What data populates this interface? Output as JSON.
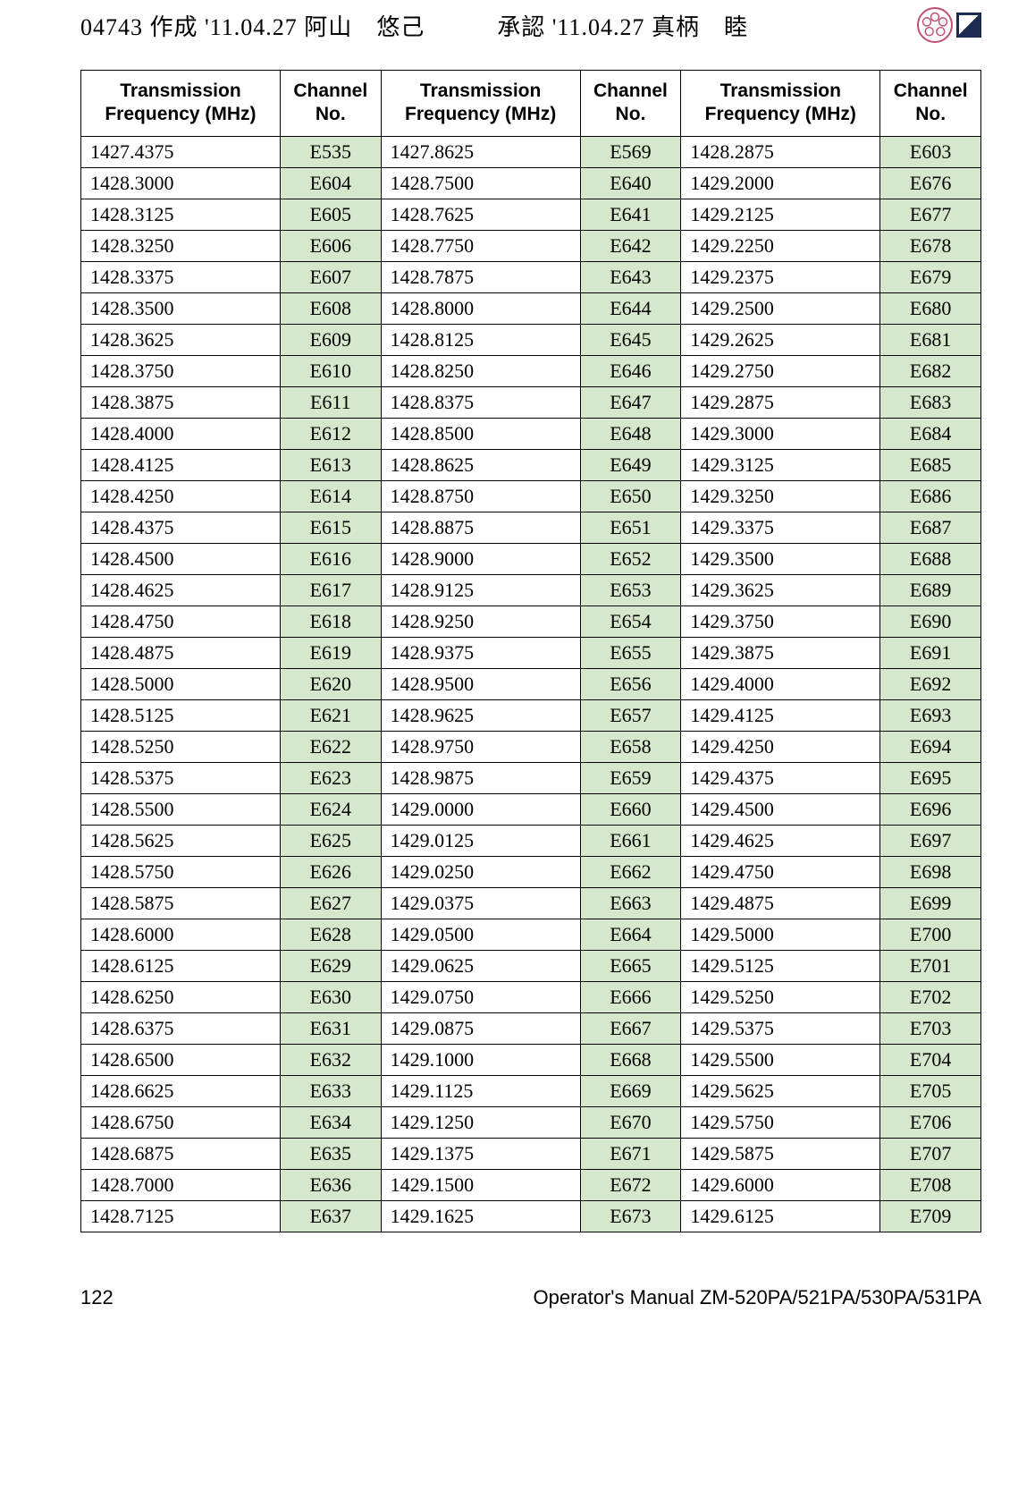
{
  "header": {
    "text": "04743 作成 '11.04.27 阿山　悠己　　　承認 '11.04.27 真柄　睦"
  },
  "table": {
    "columns": [
      "Transmission Frequency (MHz)",
      "Channel No.",
      "Transmission Frequency (MHz)",
      "Channel No.",
      "Transmission Frequency (MHz)",
      "Channel No."
    ],
    "header_bg": "#ffffff",
    "freq_bg": "#ffffff",
    "chan_bg": "#d6e8cc",
    "border_color": "#000000",
    "font_size": 22,
    "header_font_size": 21,
    "rows": [
      [
        "1427.4375",
        "E535",
        "1427.8625",
        "E569",
        "1428.2875",
        "E603"
      ],
      [
        "1428.3000",
        "E604",
        "1428.7500",
        "E640",
        "1429.2000",
        "E676"
      ],
      [
        "1428.3125",
        "E605",
        "1428.7625",
        "E641",
        "1429.2125",
        "E677"
      ],
      [
        "1428.3250",
        "E606",
        "1428.7750",
        "E642",
        "1429.2250",
        "E678"
      ],
      [
        "1428.3375",
        "E607",
        "1428.7875",
        "E643",
        "1429.2375",
        "E679"
      ],
      [
        "1428.3500",
        "E608",
        "1428.8000",
        "E644",
        "1429.2500",
        "E680"
      ],
      [
        "1428.3625",
        "E609",
        "1428.8125",
        "E645",
        "1429.2625",
        "E681"
      ],
      [
        "1428.3750",
        "E610",
        "1428.8250",
        "E646",
        "1429.2750",
        "E682"
      ],
      [
        "1428.3875",
        "E611",
        "1428.8375",
        "E647",
        "1429.2875",
        "E683"
      ],
      [
        "1428.4000",
        "E612",
        "1428.8500",
        "E648",
        "1429.3000",
        "E684"
      ],
      [
        "1428.4125",
        "E613",
        "1428.8625",
        "E649",
        "1429.3125",
        "E685"
      ],
      [
        "1428.4250",
        "E614",
        "1428.8750",
        "E650",
        "1429.3250",
        "E686"
      ],
      [
        "1428.4375",
        "E615",
        "1428.8875",
        "E651",
        "1429.3375",
        "E687"
      ],
      [
        "1428.4500",
        "E616",
        "1428.9000",
        "E652",
        "1429.3500",
        "E688"
      ],
      [
        "1428.4625",
        "E617",
        "1428.9125",
        "E653",
        "1429.3625",
        "E689"
      ],
      [
        "1428.4750",
        "E618",
        "1428.9250",
        "E654",
        "1429.3750",
        "E690"
      ],
      [
        "1428.4875",
        "E619",
        "1428.9375",
        "E655",
        "1429.3875",
        "E691"
      ],
      [
        "1428.5000",
        "E620",
        "1428.9500",
        "E656",
        "1429.4000",
        "E692"
      ],
      [
        "1428.5125",
        "E621",
        "1428.9625",
        "E657",
        "1429.4125",
        "E693"
      ],
      [
        "1428.5250",
        "E622",
        "1428.9750",
        "E658",
        "1429.4250",
        "E694"
      ],
      [
        "1428.5375",
        "E623",
        "1428.9875",
        "E659",
        "1429.4375",
        "E695"
      ],
      [
        "1428.5500",
        "E624",
        "1429.0000",
        "E660",
        "1429.4500",
        "E696"
      ],
      [
        "1428.5625",
        "E625",
        "1429.0125",
        "E661",
        "1429.4625",
        "E697"
      ],
      [
        "1428.5750",
        "E626",
        "1429.0250",
        "E662",
        "1429.4750",
        "E698"
      ],
      [
        "1428.5875",
        "E627",
        "1429.0375",
        "E663",
        "1429.4875",
        "E699"
      ],
      [
        "1428.6000",
        "E628",
        "1429.0500",
        "E664",
        "1429.5000",
        "E700"
      ],
      [
        "1428.6125",
        "E629",
        "1429.0625",
        "E665",
        "1429.5125",
        "E701"
      ],
      [
        "1428.6250",
        "E630",
        "1429.0750",
        "E666",
        "1429.5250",
        "E702"
      ],
      [
        "1428.6375",
        "E631",
        "1429.0875",
        "E667",
        "1429.5375",
        "E703"
      ],
      [
        "1428.6500",
        "E632",
        "1429.1000",
        "E668",
        "1429.5500",
        "E704"
      ],
      [
        "1428.6625",
        "E633",
        "1429.1125",
        "E669",
        "1429.5625",
        "E705"
      ],
      [
        "1428.6750",
        "E634",
        "1429.1250",
        "E670",
        "1429.5750",
        "E706"
      ],
      [
        "1428.6875",
        "E635",
        "1429.1375",
        "E671",
        "1429.5875",
        "E707"
      ],
      [
        "1428.7000",
        "E636",
        "1429.1500",
        "E672",
        "1429.6000",
        "E708"
      ],
      [
        "1428.7125",
        "E637",
        "1429.1625",
        "E673",
        "1429.6125",
        "E709"
      ]
    ]
  },
  "footer": {
    "page_number": "122",
    "manual_title": "Operator's Manual  ZM-520PA/521PA/530PA/531PA"
  }
}
